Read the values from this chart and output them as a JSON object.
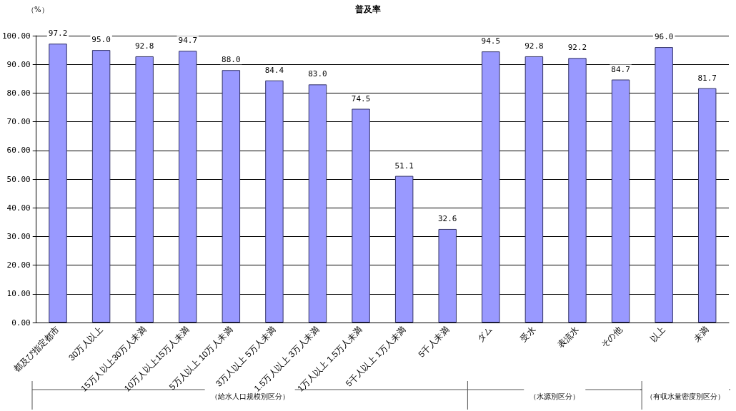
{
  "chart_data": {
    "type": "bar",
    "title": "普及率",
    "ylabel": "（%）",
    "categories": [
      "都及び指定都市",
      "30万人以上",
      "15万人以上30万人未満",
      "10万人以上15万人未満",
      "5万人以上 10万人未満",
      "3万人以上 5万人未満",
      "1.5万人以上 3万人未満",
      "1万人以上 1.5万人未満",
      "5千人以上 1万人未満",
      "5千人未満",
      "ダム",
      "受水",
      "表流水",
      "その他",
      "以上",
      "未満"
    ],
    "values": [
      97.2,
      95.0,
      92.8,
      94.7,
      88.0,
      84.4,
      83.0,
      74.5,
      51.1,
      32.6,
      94.5,
      92.8,
      92.2,
      84.7,
      96.0,
      81.7
    ],
    "color": "#9999ff",
    "grid": "y",
    "value_labels": [
      "97.2",
      "95.0",
      "92.8",
      "94.7",
      "88.0",
      "84.4",
      "83.0",
      "74.5",
      "51.1",
      "32.6",
      "94.5",
      "92.8",
      "92.2",
      "84.7",
      "96.0",
      "81.7"
    ],
    "ylim": [
      0,
      100
    ],
    "yticks": [
      {
        "value": 0,
        "label": "0.00"
      },
      {
        "value": 10,
        "label": "10.00"
      },
      {
        "value": 20,
        "label": "20.00"
      },
      {
        "value": 30,
        "label": "30.00"
      },
      {
        "value": 40,
        "label": "40.00"
      },
      {
        "value": 50,
        "label": "50.00"
      },
      {
        "value": 60,
        "label": "60.00"
      },
      {
        "value": 70,
        "label": "70.00"
      },
      {
        "value": 80,
        "label": "80.00"
      },
      {
        "value": 90,
        "label": "90.00"
      },
      {
        "value": 100,
        "label": "100.00"
      }
    ],
    "annotations": [
      "（給水人口規模別区分）",
      "（水源別区分）",
      "（有収水量密度別区分）"
    ]
  }
}
